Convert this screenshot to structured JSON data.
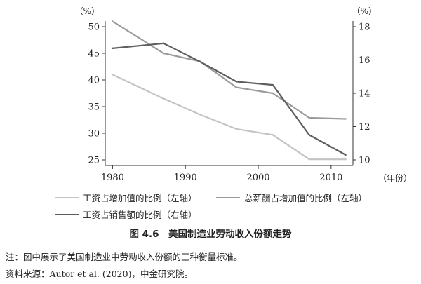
{
  "chart_data": {
    "type": "line",
    "x": [
      1980,
      1987,
      1992,
      1997,
      2002,
      2007,
      2012
    ],
    "xticks": [
      1980,
      1990,
      2000,
      2010
    ],
    "xlim": [
      1979,
      2013
    ],
    "xunit": "（年份）",
    "left_axis": {
      "unit": "（%）",
      "ylim": [
        25,
        50
      ],
      "ticks": [
        25,
        30,
        35,
        40,
        45,
        50
      ]
    },
    "right_axis": {
      "unit": "（%）",
      "ylim": [
        10,
        18
      ],
      "ticks": [
        10,
        12,
        14,
        16,
        18
      ]
    },
    "series": [
      {
        "name": "工资占增加值的比例（左轴）",
        "axis": "left",
        "color": "#c4c4c4",
        "values": [
          41.0,
          36.5,
          33.5,
          30.8,
          29.7,
          25.1,
          25.1
        ]
      },
      {
        "name": "总薪酬占增加值的比例（左轴）",
        "axis": "left",
        "color": "#9a9a9a",
        "values": [
          51.0,
          45.0,
          43.5,
          38.6,
          37.5,
          32.9,
          32.7
        ]
      },
      {
        "name": "工资占销售额的比例（右轴）",
        "axis": "right",
        "color": "#5e5e5e",
        "values": [
          16.7,
          17.0,
          15.9,
          14.7,
          14.5,
          11.5,
          10.3
        ]
      }
    ]
  },
  "caption": "图 4.6　美国制造业劳动收入份额走势",
  "note": {
    "line1": "注：图中展示了美国制造业中劳动收入份额的三种衡量标准。",
    "source_label": "资料来源：",
    "source_ref": "Autor et al. (2020)",
    "source_tail": "，中金研究院。"
  }
}
